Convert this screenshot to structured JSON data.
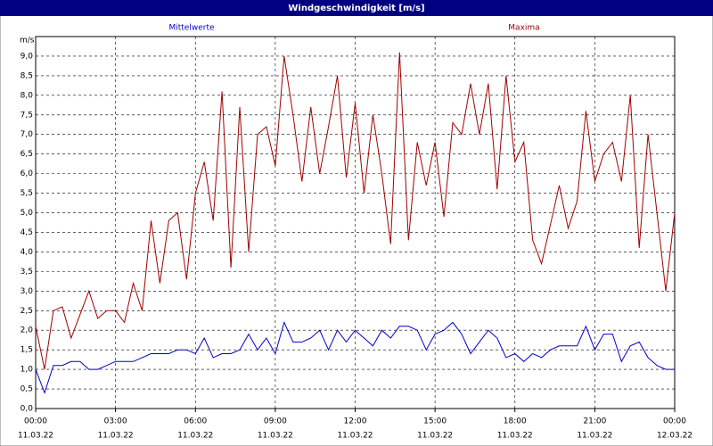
{
  "chart_data": {
    "type": "line",
    "title": "Windgeschwindigkeit [m/s]",
    "ylabel": "m/s",
    "x": [
      0,
      20,
      40,
      60,
      80,
      100,
      120,
      140,
      160,
      180,
      200,
      220,
      240,
      260,
      280,
      300,
      320,
      340,
      360,
      380,
      400,
      420,
      440,
      460,
      480,
      500,
      520,
      540,
      560,
      580,
      600,
      620,
      640,
      660,
      680,
      700,
      720,
      740,
      760,
      780,
      800,
      820,
      840,
      860,
      880,
      900,
      920,
      940,
      960,
      980,
      1000,
      1020,
      1040,
      1060,
      1080,
      1100,
      1120,
      1140,
      1160,
      1180,
      1200,
      1220,
      1240,
      1260,
      1280,
      1300,
      1320,
      1340,
      1360,
      1380,
      1400,
      1420,
      1440
    ],
    "series": [
      {
        "name": "Mittelwerte",
        "color": "#0000cc",
        "values": [
          1.0,
          0.4,
          1.1,
          1.1,
          1.2,
          1.2,
          1.0,
          1.0,
          1.1,
          1.2,
          1.2,
          1.2,
          1.3,
          1.4,
          1.4,
          1.4,
          1.5,
          1.5,
          1.4,
          1.8,
          1.3,
          1.4,
          1.4,
          1.5,
          1.9,
          1.5,
          1.8,
          1.4,
          2.2,
          1.7,
          1.7,
          1.8,
          2.0,
          1.5,
          2.0,
          1.7,
          2.0,
          1.8,
          1.6,
          2.0,
          1.8,
          2.1,
          2.1,
          2.0,
          1.5,
          1.9,
          2.0,
          2.2,
          1.9,
          1.4,
          1.7,
          2.0,
          1.8,
          1.3,
          1.4,
          1.2,
          1.4,
          1.3,
          1.5,
          1.6,
          1.6,
          1.6,
          2.1,
          1.5,
          1.9,
          1.9,
          1.2,
          1.6,
          1.7,
          1.3,
          1.1,
          1.0,
          1.0
        ]
      },
      {
        "name": "Maxima",
        "color": "#a00000",
        "values": [
          2.1,
          1.0,
          2.5,
          2.6,
          1.8,
          2.4,
          3.0,
          2.3,
          2.5,
          2.5,
          2.2,
          3.2,
          2.5,
          4.8,
          3.2,
          4.8,
          5.0,
          3.3,
          5.5,
          6.3,
          4.8,
          8.1,
          3.6,
          7.7,
          4.0,
          7.0,
          7.2,
          6.2,
          9.0,
          7.5,
          5.8,
          7.7,
          6.0,
          7.2,
          8.5,
          5.9,
          7.8,
          5.5,
          7.5,
          6.0,
          4.2,
          9.1,
          4.3,
          6.8,
          5.7,
          6.8,
          4.9,
          7.3,
          7.0,
          8.3,
          7.0,
          8.3,
          5.6,
          8.5,
          6.3,
          6.8,
          4.3,
          3.7,
          4.7,
          5.7,
          4.6,
          5.3,
          7.6,
          5.8,
          6.5,
          6.8,
          5.8,
          8.0,
          4.1,
          7.0,
          5.0,
          3.0,
          5.0
        ]
      }
    ],
    "xlim": [
      0,
      1440
    ],
    "xticks": [
      {
        "value": 0,
        "label": "00:00",
        "date": "11.03.22"
      },
      {
        "value": 180,
        "label": "03:00",
        "date": "11.03.22"
      },
      {
        "value": 360,
        "label": "06:00",
        "date": "11.03.22"
      },
      {
        "value": 540,
        "label": "09:00",
        "date": "11.03.22"
      },
      {
        "value": 720,
        "label": "12:00",
        "date": "11.03.22"
      },
      {
        "value": 900,
        "label": "15:00",
        "date": "11.03.22"
      },
      {
        "value": 1080,
        "label": "18:00",
        "date": "11.03.22"
      },
      {
        "value": 1260,
        "label": "21:00",
        "date": "11.03.22"
      },
      {
        "value": 1440,
        "label": "00:00",
        "date": "12.03.22"
      }
    ],
    "ylim": [
      0,
      9.5
    ],
    "yticks": [
      {
        "value": 0,
        "label": "0,0"
      },
      {
        "value": 0.5,
        "label": "0,5"
      },
      {
        "value": 1,
        "label": "1,0"
      },
      {
        "value": 1.5,
        "label": "1,5"
      },
      {
        "value": 2,
        "label": "2,0"
      },
      {
        "value": 2.5,
        "label": "2,5"
      },
      {
        "value": 3,
        "label": "3,0"
      },
      {
        "value": 3.5,
        "label": "3,5"
      },
      {
        "value": 4,
        "label": "4,0"
      },
      {
        "value": 4.5,
        "label": "4,5"
      },
      {
        "value": 5,
        "label": "5,0"
      },
      {
        "value": 5.5,
        "label": "5,5"
      },
      {
        "value": 6,
        "label": "6,0"
      },
      {
        "value": 6.5,
        "label": "6,5"
      },
      {
        "value": 7,
        "label": "7,0"
      },
      {
        "value": 7.5,
        "label": "7,5"
      },
      {
        "value": 8,
        "label": "8,0"
      },
      {
        "value": 8.5,
        "label": "8,5"
      },
      {
        "value": 9,
        "label": "9,0"
      }
    ],
    "grid": true
  }
}
